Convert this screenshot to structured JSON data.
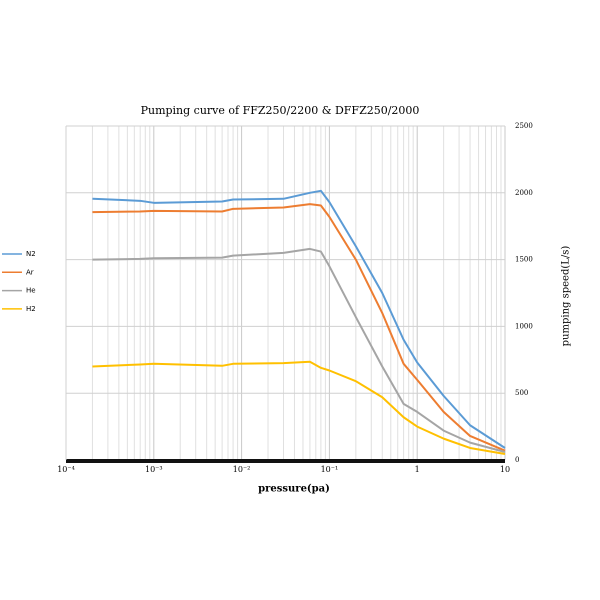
{
  "chart_data": {
    "type": "line",
    "title": "Pumping curve of FFZ250/2200 & DFFZ250/2000",
    "x_label": "pressure(pa)",
    "y_label": "pumping speed(L/s)",
    "x": [
      0.0002,
      0.0007,
      0.001,
      0.006,
      0.008,
      0.03,
      0.06,
      0.08,
      0.1,
      0.2,
      0.4,
      0.7,
      1,
      2,
      4,
      10
    ],
    "series": [
      {
        "name": "N2",
        "color": "#5b9bd5",
        "values": [
          1955,
          1940,
          1925,
          1935,
          1950,
          1955,
          2000,
          2015,
          1930,
          1600,
          1250,
          900,
          730,
          480,
          260,
          90
        ]
      },
      {
        "name": "Ar",
        "color": "#ed7d31",
        "values": [
          1855,
          1860,
          1865,
          1860,
          1880,
          1890,
          1915,
          1905,
          1820,
          1500,
          1100,
          720,
          600,
          360,
          180,
          70
        ]
      },
      {
        "name": "He",
        "color": "#a5a5a5",
        "values": [
          1500,
          1505,
          1510,
          1515,
          1530,
          1550,
          1580,
          1560,
          1450,
          1070,
          700,
          420,
          360,
          220,
          130,
          60
        ]
      },
      {
        "name": "H2",
        "color": "#ffc000",
        "values": [
          700,
          715,
          720,
          705,
          720,
          725,
          735,
          690,
          670,
          590,
          470,
          320,
          250,
          160,
          90,
          45
        ]
      }
    ],
    "xlim": [
      0.0001,
      10
    ],
    "xticks": [
      {
        "value": 0.0001,
        "label": "10⁻⁴"
      },
      {
        "value": 0.001,
        "label": "10⁻³"
      },
      {
        "value": 0.01,
        "label": "10⁻²"
      },
      {
        "value": 0.1,
        "label": "10⁻¹"
      },
      1,
      10
    ],
    "x_log": true,
    "ylim": [
      0,
      2500
    ],
    "yticks": [
      0,
      500,
      1000,
      1500,
      2000,
      2500
    ],
    "y_axis_side": "right",
    "grid": true,
    "legend": "left"
  }
}
